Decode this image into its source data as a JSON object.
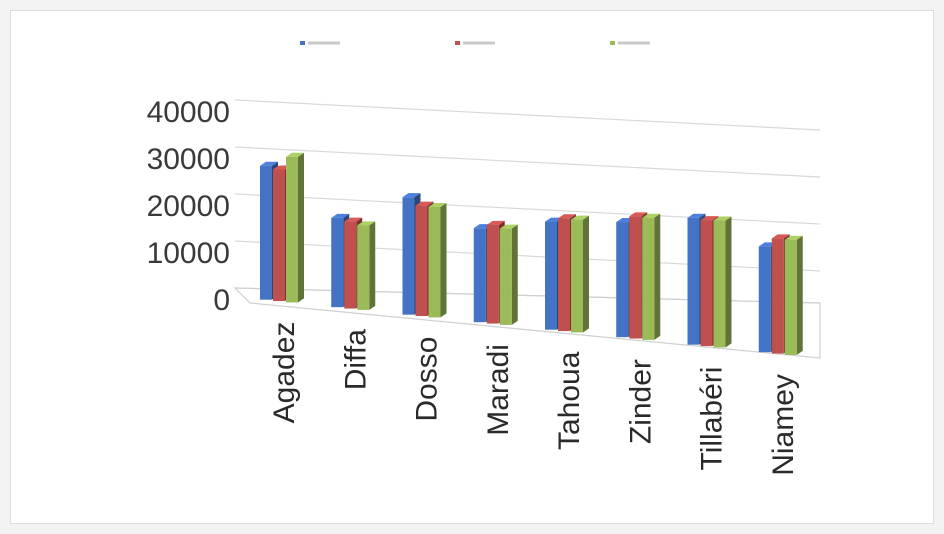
{
  "chart_data": {
    "type": "bar",
    "title": "",
    "xlabel": "",
    "ylabel": "",
    "categories": [
      "Agadez",
      "Diffa",
      "Dosso",
      "Maradi",
      "Tahoua",
      "Zinder",
      "Tillabéri",
      "Niamey"
    ],
    "series": [
      {
        "values": [
          28500,
          19000,
          25000,
          20000,
          23000,
          24500,
          27000,
          22500
        ],
        "color": "#4472c4"
      },
      {
        "values": [
          28000,
          18500,
          23500,
          21000,
          24000,
          26000,
          26800,
          24500
        ],
        "color": "#c0504d"
      },
      {
        "values": [
          31000,
          18000,
          23500,
          20500,
          24000,
          26000,
          27000,
          24500
        ],
        "color": "#9bbb59"
      }
    ],
    "ylim": [
      0,
      40000
    ],
    "yticks": [
      0,
      10000,
      20000,
      30000,
      40000
    ],
    "style": "3d-clustered-column",
    "gridlines": true,
    "legend": "top",
    "legend_illegible": true
  }
}
